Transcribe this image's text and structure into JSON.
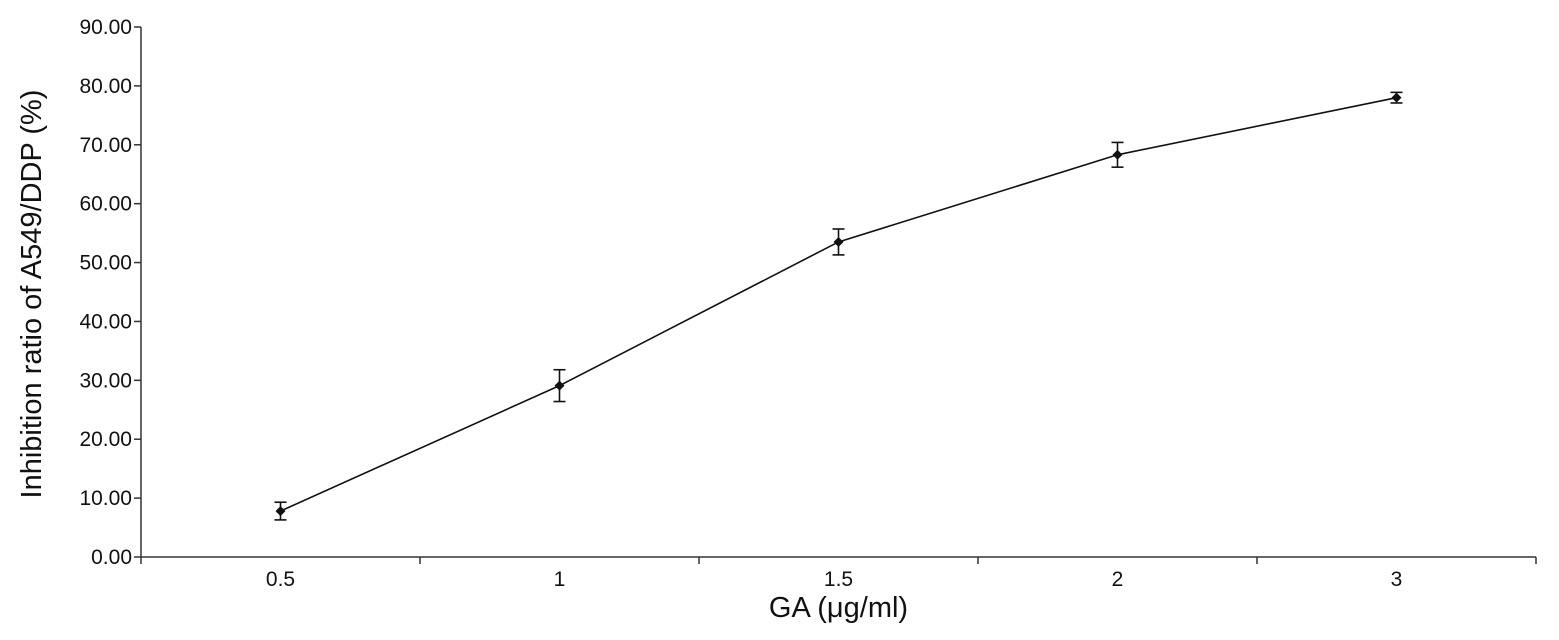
{
  "chart_data": {
    "type": "line",
    "title": "",
    "xlabel": "GA (μg/ml)",
    "ylabel": "Inhibition ratio of A549/DDP (%)",
    "categories": [
      "0.5",
      "1",
      "1.5",
      "2",
      "3"
    ],
    "series": [
      {
        "values": [
          7.8,
          29.1,
          53.5,
          68.3,
          78.0
        ],
        "error": [
          1.5,
          2.7,
          2.2,
          2.1,
          0.9
        ]
      }
    ],
    "ylim": [
      0,
      90
    ],
    "yticks": [
      "0.00",
      "10.00",
      "20.00",
      "30.00",
      "40.00",
      "50.00",
      "60.00",
      "70.00",
      "80.00",
      "90.00"
    ],
    "grid": false,
    "legend": "none",
    "colors": {
      "line": "#111111",
      "axis": "#333333"
    }
  }
}
